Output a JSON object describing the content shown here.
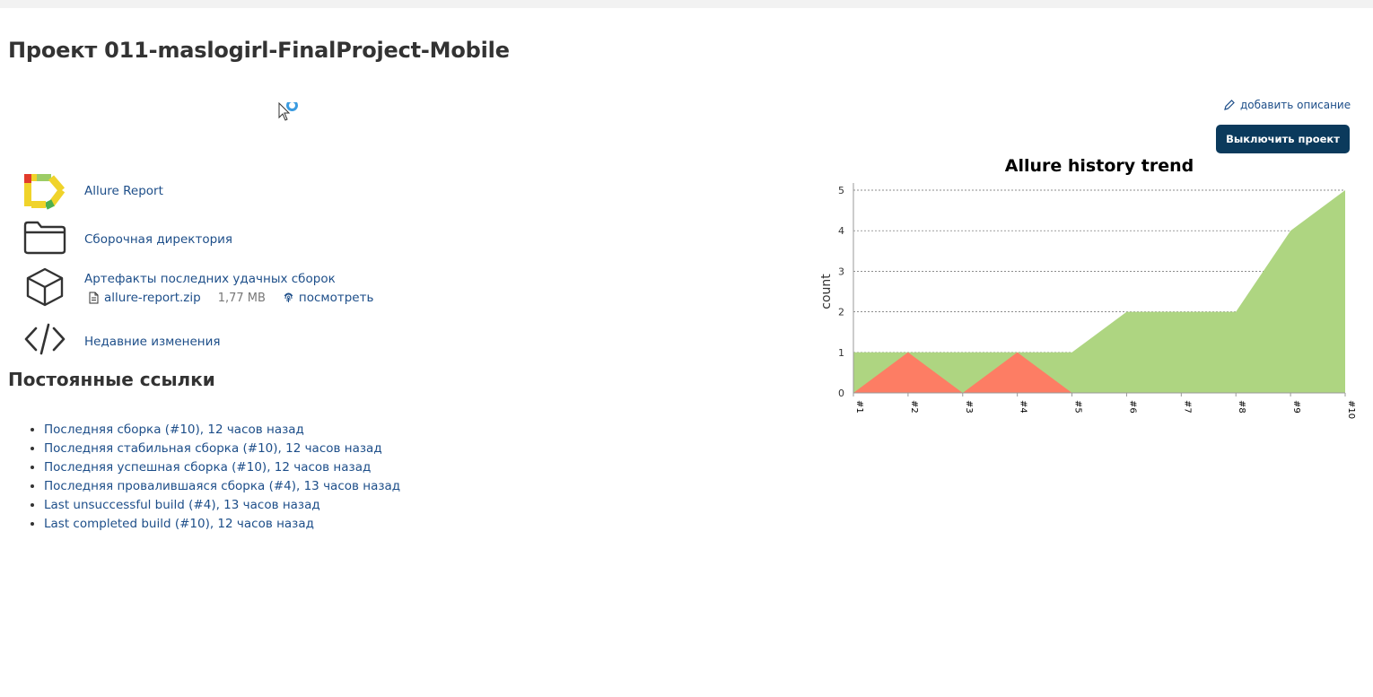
{
  "page": {
    "title": "Проект 011-maslogirl-FinalProject-Mobile"
  },
  "actions": {
    "add_description": "добавить описание",
    "disable_project": "Выключить проект"
  },
  "project_links": [
    {
      "label": "Allure Report",
      "icon": "allure-logo-icon"
    },
    {
      "label": "Сборочная директория",
      "icon": "folder-icon"
    },
    {
      "label": "Артефакты последних удачных сборок",
      "icon": "package-icon"
    },
    {
      "label": "Недавние изменения",
      "icon": "code-icon"
    }
  ],
  "artifact": {
    "file_name": "allure-report.zip",
    "file_size": "1,77 MB",
    "view_label": "посмотреть"
  },
  "permalinks": {
    "title": "Постоянные ссылки",
    "items": [
      "Последняя сборка (#10), 12 часов назад",
      "Последняя стабильная сборка (#10), 12 часов назад",
      "Последняя успешная сборка (#10), 12 часов назад",
      "Последняя провалившаяся сборка (#4), 13 часов назад",
      "Last unsuccessful build (#4), 13 часов назад",
      "Last completed build (#10), 12 часов назад"
    ]
  },
  "chart_data": {
    "type": "area",
    "title": "Allure history trend",
    "xlabel": "",
    "ylabel": "count",
    "categories": [
      "#1",
      "#2",
      "#3",
      "#4",
      "#5",
      "#6",
      "#7",
      "#8",
      "#9",
      "#10"
    ],
    "ylim": [
      0,
      5
    ],
    "yticks": [
      0,
      1,
      2,
      3,
      4,
      5
    ],
    "grid": true,
    "series": [
      {
        "values": [
          1,
          1,
          1,
          1,
          1,
          2,
          2,
          2,
          4,
          5
        ],
        "color": "#aed581"
      },
      {
        "values": [
          0,
          1,
          0,
          1,
          0,
          0,
          0,
          0,
          0,
          0
        ],
        "color": "#fd7d64"
      }
    ]
  },
  "colors": {
    "link": "#1d4e89",
    "button_bg": "#0b3a5c",
    "passed": "#aed581",
    "failed": "#fd7d64"
  }
}
